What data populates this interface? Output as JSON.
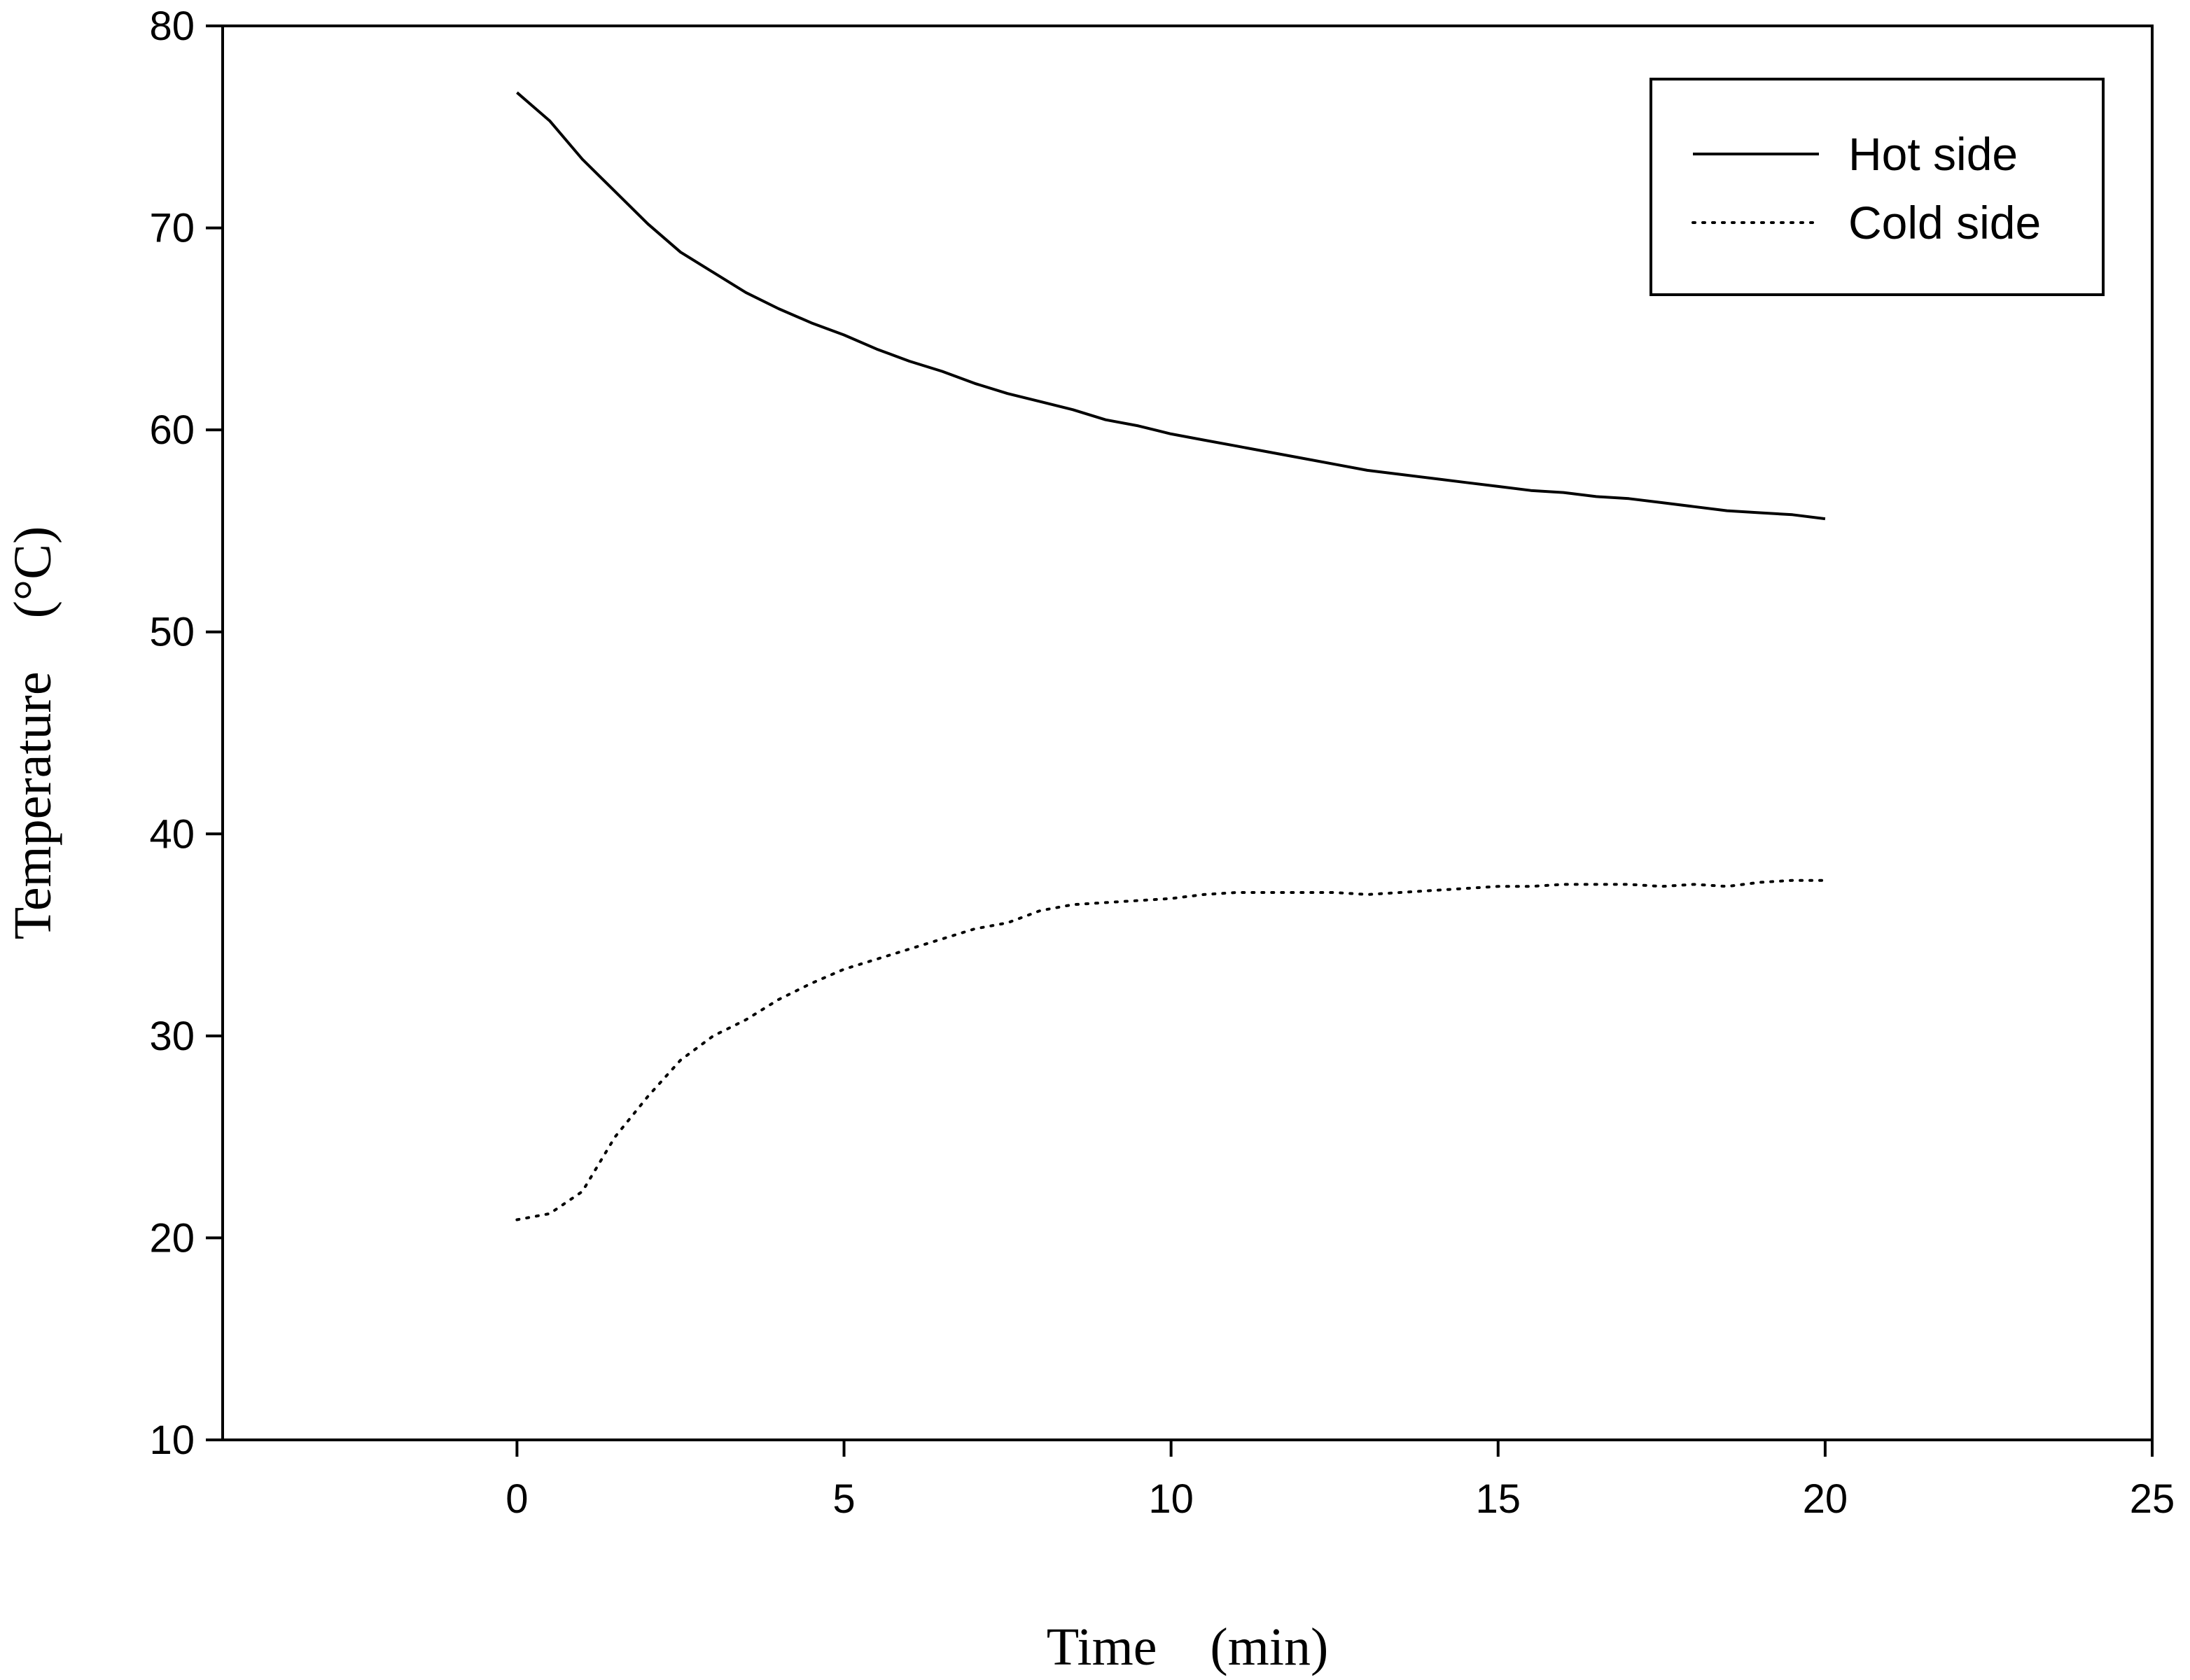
{
  "chart_data": {
    "type": "line",
    "title": "",
    "xlabel": "Time    (min)",
    "ylabel": "Temperature    (°C)",
    "xlim": [
      -4.5,
      25
    ],
    "ylim": [
      10,
      80
    ],
    "xticks": [
      0,
      5,
      10,
      15,
      20,
      25
    ],
    "yticks": [
      10,
      20,
      30,
      40,
      50,
      60,
      70,
      80
    ],
    "xtick_labels": [
      "0",
      "5",
      "10",
      "15",
      "20",
      "25"
    ],
    "ytick_labels": [
      "10",
      "20",
      "30",
      "40",
      "50",
      "60",
      "70",
      "80"
    ],
    "grid": false,
    "legend": {
      "position": "top-right"
    },
    "series": [
      {
        "name": "Hot side",
        "style": "solid",
        "color": "#000000",
        "x": [
          0,
          0.5,
          1,
          1.5,
          2,
          2.5,
          3,
          3.5,
          4,
          4.5,
          5,
          5.5,
          6,
          6.5,
          7,
          7.5,
          8,
          8.5,
          9,
          9.5,
          10,
          10.5,
          11,
          11.5,
          12,
          12.5,
          13,
          13.5,
          14,
          14.5,
          15,
          15.5,
          16,
          16.5,
          17,
          17.5,
          18,
          18.5,
          19,
          19.5,
          20
        ],
        "y": [
          76.7,
          75.3,
          73.4,
          71.8,
          70.2,
          68.8,
          67.8,
          66.8,
          66.0,
          65.3,
          64.7,
          64.0,
          63.4,
          62.9,
          62.3,
          61.8,
          61.4,
          61.0,
          60.5,
          60.2,
          59.8,
          59.5,
          59.2,
          58.9,
          58.6,
          58.3,
          58.0,
          57.8,
          57.6,
          57.4,
          57.2,
          57.0,
          56.9,
          56.7,
          56.6,
          56.4,
          56.2,
          56.0,
          55.9,
          55.8,
          55.6
        ]
      },
      {
        "name": "Cold side",
        "style": "dotted",
        "color": "#000000",
        "x": [
          0,
          0.5,
          1,
          1.5,
          2,
          2.5,
          3,
          3.5,
          4,
          4.5,
          5,
          5.5,
          6,
          6.5,
          7,
          7.5,
          8,
          8.5,
          9,
          9.5,
          10,
          10.5,
          11,
          11.5,
          12,
          12.5,
          13,
          13.5,
          14,
          14.5,
          15,
          15.5,
          16,
          16.5,
          17,
          17.5,
          18,
          18.5,
          19,
          19.5,
          20
        ],
        "y": [
          20.9,
          21.2,
          22.3,
          25.0,
          27.0,
          28.8,
          30.0,
          30.8,
          31.8,
          32.6,
          33.3,
          33.8,
          34.3,
          34.8,
          35.3,
          35.6,
          36.2,
          36.5,
          36.6,
          36.7,
          36.8,
          37.0,
          37.1,
          37.1,
          37.1,
          37.1,
          37.0,
          37.1,
          37.2,
          37.3,
          37.4,
          37.4,
          37.5,
          37.5,
          37.5,
          37.4,
          37.5,
          37.4,
          37.6,
          37.7,
          37.7
        ]
      }
    ]
  }
}
